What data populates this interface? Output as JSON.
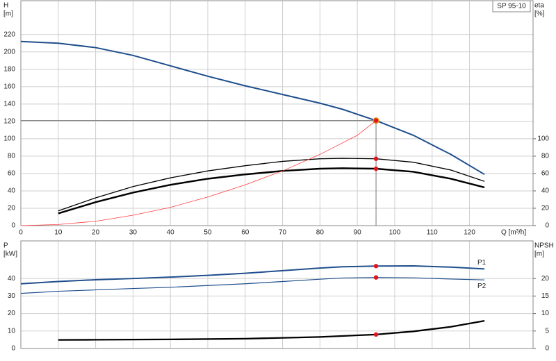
{
  "chart_data": [
    {
      "type": "line",
      "title": "SP 95-10",
      "x_label": "Q [m³/h]",
      "y_label": [
        "H",
        "[m]"
      ],
      "y2_label": [
        "eta",
        "[%]"
      ],
      "xlim": [
        0,
        137
      ],
      "xticks": [
        0,
        10,
        20,
        30,
        40,
        50,
        60,
        70,
        80,
        90,
        100,
        110,
        120
      ],
      "ylim": [
        0,
        259
      ],
      "yticks": [
        0,
        20,
        40,
        60,
        80,
        100,
        120,
        140,
        160,
        180,
        200,
        220
      ],
      "y2lim": [
        0,
        259
      ],
      "y2ticks": [
        0,
        20,
        40,
        60,
        80,
        100
      ],
      "grid": true,
      "duty_point": {
        "x": 95,
        "y": 121
      },
      "series": [
        {
          "color": "#1f4e8c",
          "width": 2,
          "x": [
            0,
            10,
            20,
            30,
            40,
            50,
            60,
            70,
            80,
            86,
            95,
            105,
            115,
            124
          ],
          "values": [
            212,
            210,
            205,
            196,
            184,
            172,
            161,
            151,
            141,
            134,
            121,
            104,
            82,
            59
          ]
        },
        {
          "color": "#000000",
          "width": 1.3,
          "axis": "y2",
          "x": [
            10,
            20,
            30,
            40,
            50,
            60,
            70,
            80,
            86,
            95,
            105,
            115,
            124
          ],
          "values": [
            17,
            32,
            45,
            55,
            63,
            69,
            74,
            77,
            77.5,
            77,
            73,
            64,
            51
          ]
        },
        {
          "color": "#000000",
          "width": 2.5,
          "axis": "y2",
          "x": [
            10,
            20,
            30,
            40,
            50,
            60,
            70,
            80,
            86,
            95,
            105,
            115,
            124
          ],
          "values": [
            14,
            27,
            38,
            47,
            54,
            59,
            63,
            65.5,
            66,
            65.5,
            62,
            54,
            44
          ]
        },
        {
          "color": "#ff3b3b",
          "width": 0.8,
          "x": [
            0,
            10,
            20,
            30,
            40,
            50,
            60,
            70,
            80,
            90,
            95
          ],
          "values": [
            0,
            1.3,
            5,
            12,
            21,
            33,
            47,
            63,
            82,
            104,
            121
          ]
        }
      ]
    },
    {
      "type": "line",
      "y_label": [
        "P",
        "[kW]"
      ],
      "y2_label": [
        "NPSH",
        "[m]"
      ],
      "xlim": [
        0,
        137
      ],
      "ylim": [
        0,
        61.5
      ],
      "yticks": [
        0,
        10,
        20,
        30,
        40
      ],
      "y2lim": [
        0,
        30.75
      ],
      "y2ticks": [
        0,
        5,
        10,
        15,
        20
      ],
      "grid": true,
      "duty_point": {
        "x": 95
      },
      "series": [
        {
          "name": "P1",
          "color": "#1f4e8c",
          "width": 2,
          "x": [
            0,
            10,
            20,
            30,
            40,
            50,
            60,
            70,
            80,
            86,
            95,
            105,
            115,
            124
          ],
          "values": [
            37,
            38.3,
            39.3,
            40,
            40.8,
            41.8,
            43,
            44.5,
            46,
            46.7,
            47.1,
            47.2,
            46.5,
            45.5
          ]
        },
        {
          "name": "P2",
          "color": "#1f4e8c",
          "width": 1.2,
          "x": [
            0,
            10,
            20,
            30,
            40,
            50,
            60,
            70,
            80,
            86,
            95,
            105,
            115,
            124
          ],
          "values": [
            31.5,
            32.7,
            33.5,
            34.3,
            35,
            36,
            37,
            38.3,
            39.6,
            40.3,
            40.6,
            40.4,
            39.7,
            39.2
          ]
        },
        {
          "color": "#000000",
          "width": 2.3,
          "axis": "y2",
          "x": [
            10,
            20,
            40,
            60,
            80,
            95,
            105,
            115,
            124
          ],
          "values": [
            2.45,
            2.5,
            2.6,
            2.8,
            3.3,
            4.0,
            4.9,
            6.2,
            7.9
          ]
        }
      ]
    }
  ]
}
